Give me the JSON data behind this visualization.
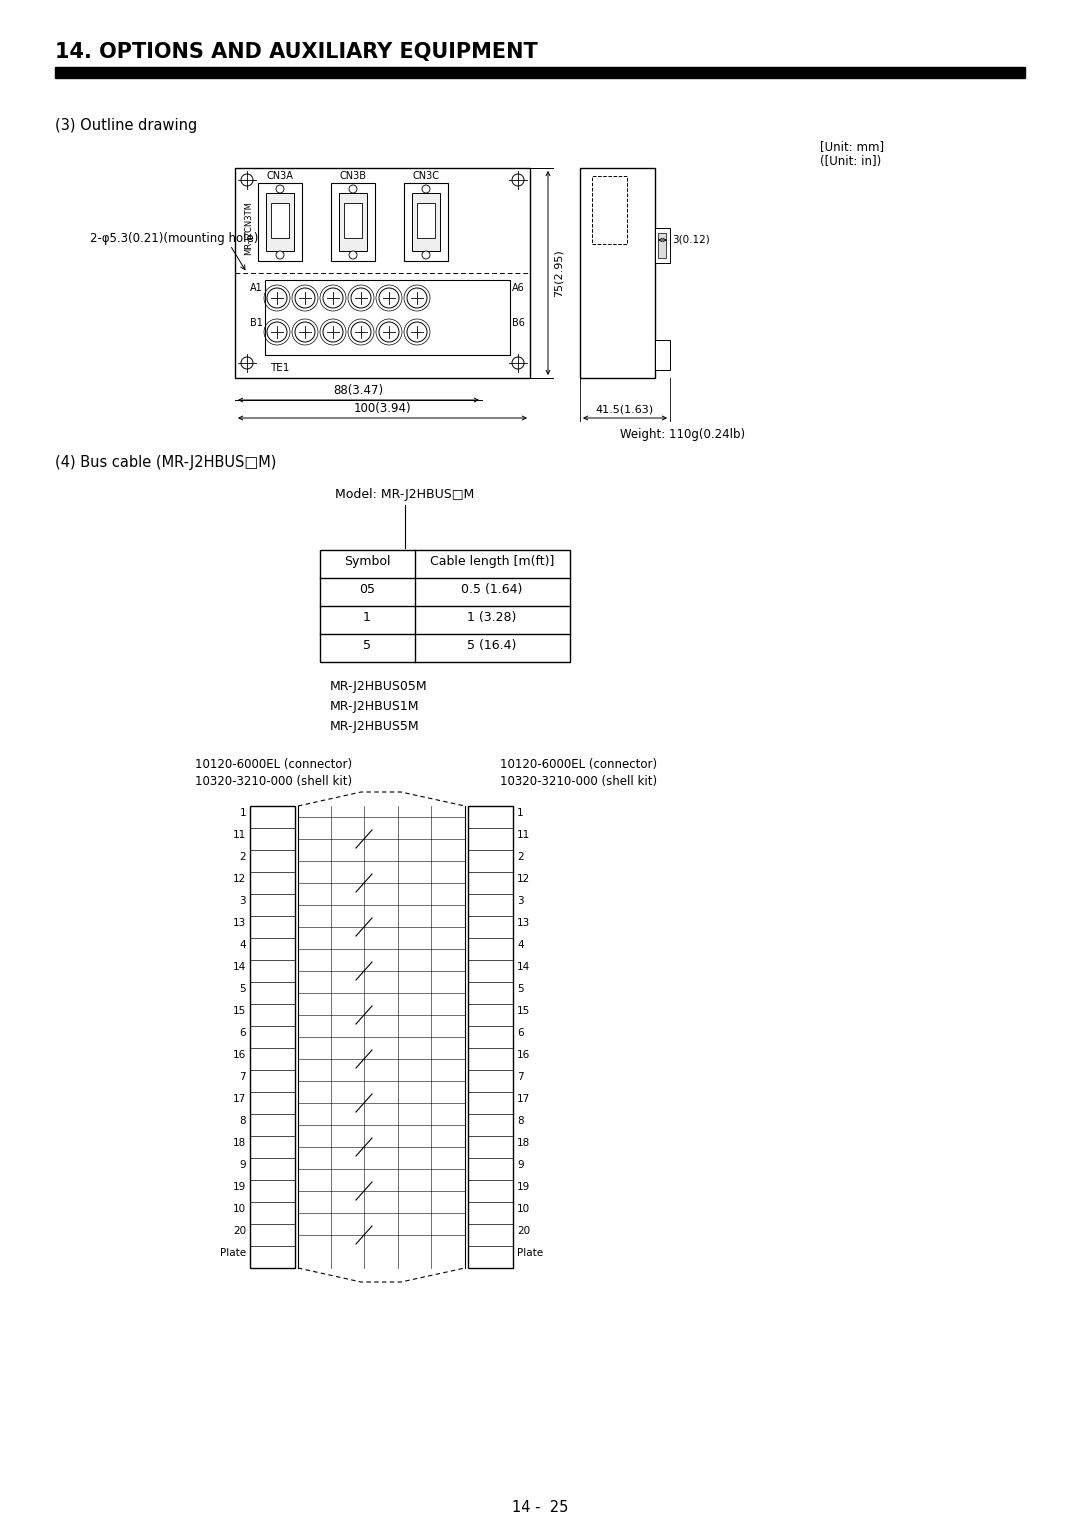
{
  "title": "14. OPTIONS AND AUXILIARY EQUIPMENT",
  "section3_label": "(3) Outline drawing",
  "unit_label": "[Unit: mm]\n([Unit: in])",
  "section4_label": "(4) Bus cable (MR-J2HBUS□M)",
  "model_label": "Model: MR-J2HBUS□M",
  "table_headers": [
    "Symbol",
    "Cable length [m(ft)]"
  ],
  "table_rows": [
    [
      "05",
      "0.5 (1.64)"
    ],
    [
      "1",
      "1 (3.28)"
    ],
    [
      "5",
      "5 (16.4)"
    ]
  ],
  "cable_names": [
    "MR-J2HBUS05M",
    "MR-J2HBUS1M",
    "MR-J2HBUS5M"
  ],
  "connector_left_line1": "10120-6000EL (connector)",
  "connector_left_line2": "10320-3210-000 (shell kit)",
  "connector_right_line1": "10120-6000EL (connector)",
  "connector_right_line2": "10320-3210-000 (shell kit)",
  "pin_numbers": [
    1,
    11,
    2,
    12,
    3,
    13,
    4,
    14,
    5,
    15,
    6,
    16,
    7,
    17,
    8,
    18,
    9,
    19,
    10,
    20,
    "Plate"
  ],
  "dim_88": "88(3.47)",
  "dim_100": "100(3.94)",
  "dim_41": "41.5(1.63)",
  "dim_3": "3(0.12)",
  "dim_75": "75(2.95)",
  "weight": "Weight: 110g(0.24lb)",
  "page_num": "14 -  25",
  "bg_color": "#ffffff"
}
